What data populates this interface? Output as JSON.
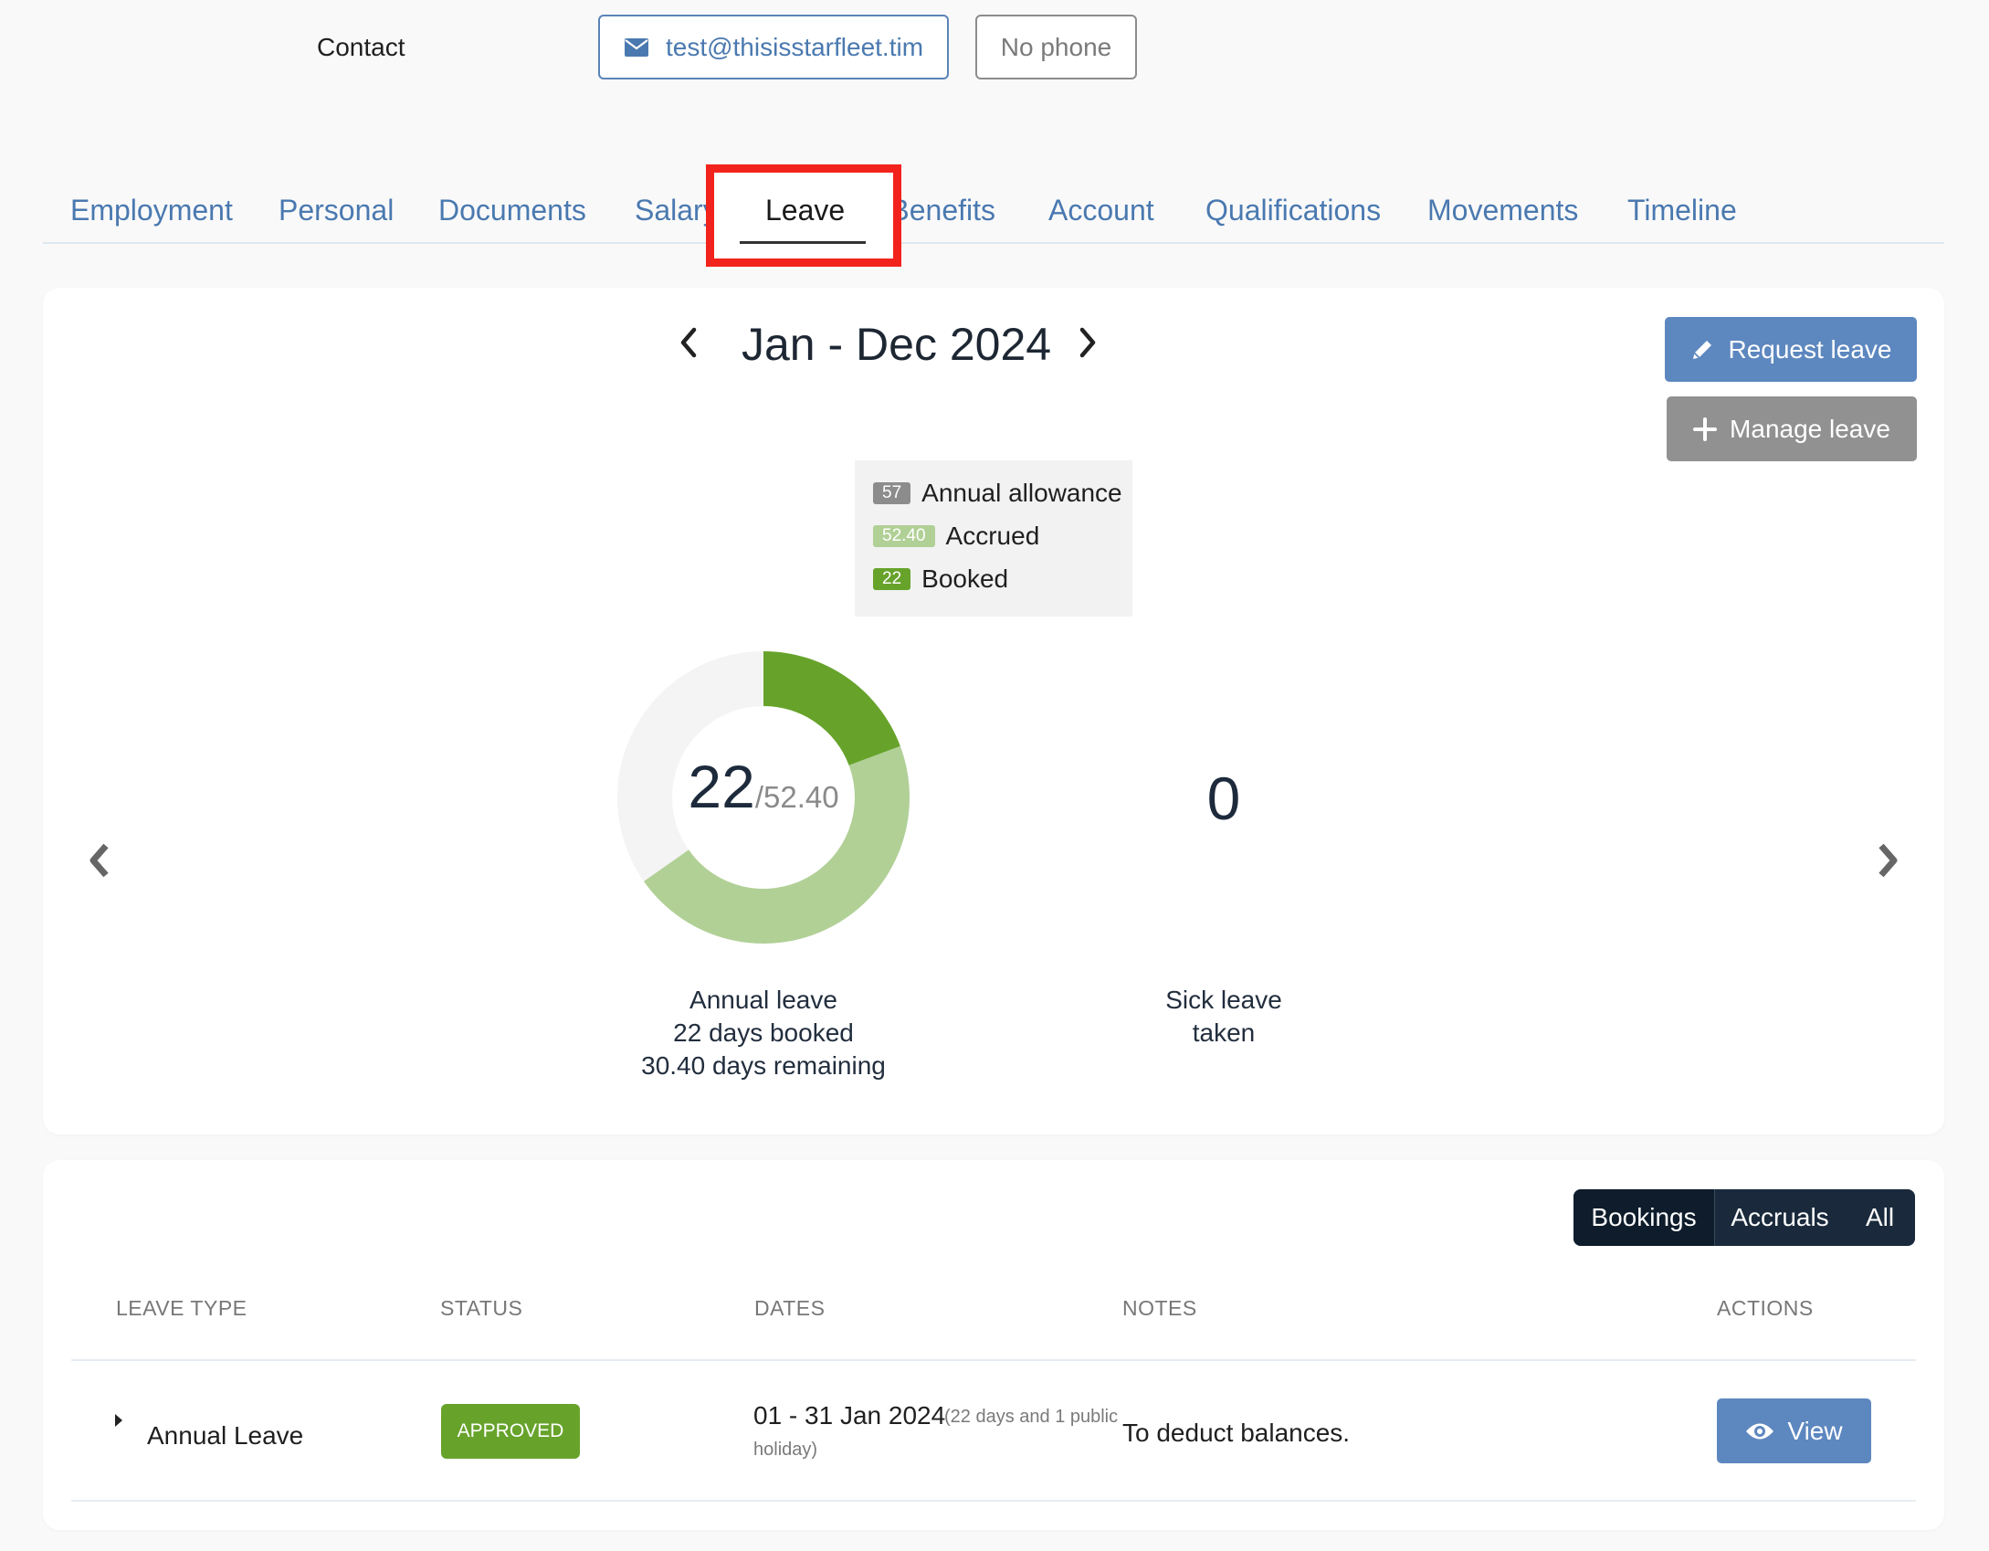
{
  "contact": {
    "label": "Contact",
    "email": "test@thisisstarfleet.tim",
    "phone": "No phone",
    "email_icon": "envelope-icon"
  },
  "tabs": [
    {
      "label": "Employment"
    },
    {
      "label": "Personal"
    },
    {
      "label": "Documents"
    },
    {
      "label": "Salary"
    },
    {
      "label": "Leave",
      "active": true
    },
    {
      "label": "Benefits"
    },
    {
      "label": "Account"
    },
    {
      "label": "Qualifications"
    },
    {
      "label": "Movements"
    },
    {
      "label": "Timeline"
    }
  ],
  "period": {
    "title": "Jan - Dec 2024",
    "prev_icon": "chevron-left-icon",
    "next_icon": "chevron-right-icon"
  },
  "actions": {
    "request_leave": "Request leave",
    "manage_leave": "Manage leave"
  },
  "legend": [
    {
      "value": "57",
      "label": "Annual allowance",
      "color": "#8c8c8c"
    },
    {
      "value": "52.40",
      "label": "Accrued",
      "color": "#b1d096"
    },
    {
      "value": "22",
      "label": "Booked",
      "color": "#67a32b"
    }
  ],
  "annual_leave": {
    "booked": 22,
    "accrued": 52.4,
    "allowance": 57,
    "booked_display": "22",
    "accrued_display": "/52.40",
    "caption_title": "Annual leave",
    "caption_booked": "22 days booked",
    "caption_remaining": "30.40 days remaining",
    "colors": {
      "booked": "#67a32b",
      "accrued": "#b1d096",
      "track": "#f4f4f4"
    }
  },
  "sick_leave": {
    "value": "0",
    "caption_line1": "Sick leave",
    "caption_line2": "taken"
  },
  "view_toggle": {
    "bookings": "Bookings",
    "accruals": "Accruals",
    "all": "All"
  },
  "table": {
    "headers": {
      "leave_type": "LEAVE TYPE",
      "status": "STATUS",
      "dates": "DATES",
      "notes": "NOTES",
      "actions": "ACTIONS"
    },
    "rows": [
      {
        "leave_type": "Annual Leave",
        "status": "APPROVED",
        "dates": "01 - 31 Jan 2024",
        "dates_detail_1": "(22 days and 1 public",
        "dates_detail_2": "holiday)",
        "notes": "To deduct balances.",
        "action": "View"
      }
    ]
  }
}
